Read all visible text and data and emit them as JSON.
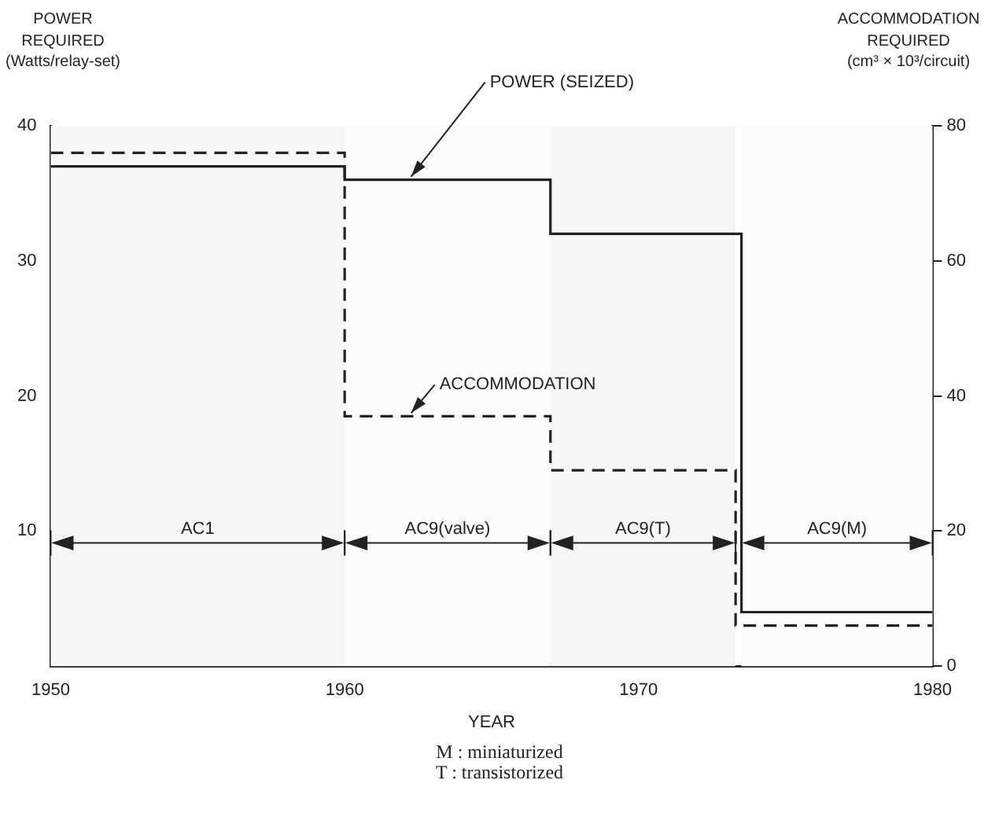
{
  "chart_data": {
    "type": "step",
    "xlabel": "YEAR",
    "ylabel": "POWER\nREQUIRED\n(Watts/relay-set)",
    "y2label": "ACCOMMODATION\nREQUIRED\n(cm³ × 10³/circuit)",
    "xlim": [
      1950,
      1980
    ],
    "xticks": [
      1950,
      1960,
      1970,
      1980
    ],
    "ylim": [
      0,
      40
    ],
    "yticks": [
      10,
      20,
      30,
      40
    ],
    "y2lim": [
      0,
      80
    ],
    "y2ticks": [
      0,
      20,
      40,
      60,
      80
    ],
    "series": [
      {
        "name": "POWER (SEIZED)",
        "color": "#222222",
        "line_style": "solid",
        "x": [
          1950,
          1960,
          1967,
          1973.5,
          1980
        ],
        "values": [
          37,
          36,
          32,
          4,
          4
        ]
      },
      {
        "name": "ACCOMMODATION",
        "color": "#222222",
        "line_style": "dashed",
        "axis": "y2",
        "x": [
          1950,
          1960,
          1967,
          1973.3,
          1980
        ],
        "values": [
          76,
          37,
          29,
          6,
          6
        ]
      }
    ],
    "bands": [
      {
        "axis": "x",
        "from": 1950,
        "to": 1960,
        "label": "AC1",
        "color": "#f6f6f6"
      },
      {
        "axis": "x",
        "from": 1960,
        "to": 1967,
        "label": "AC9(valve)",
        "color": "#fbfbfb"
      },
      {
        "axis": "x",
        "from": 1967,
        "to": 1973.3,
        "label": "AC9(T)",
        "color": "#f6f6f6"
      },
      {
        "axis": "x",
        "from": 1973.5,
        "to": 1980,
        "label": "AC9(M)",
        "color": "#fbfbfb"
      }
    ],
    "grid": false,
    "legend": false,
    "marker": "none",
    "annotations": [
      "M : miniaturized",
      "T : transistorized"
    ]
  }
}
